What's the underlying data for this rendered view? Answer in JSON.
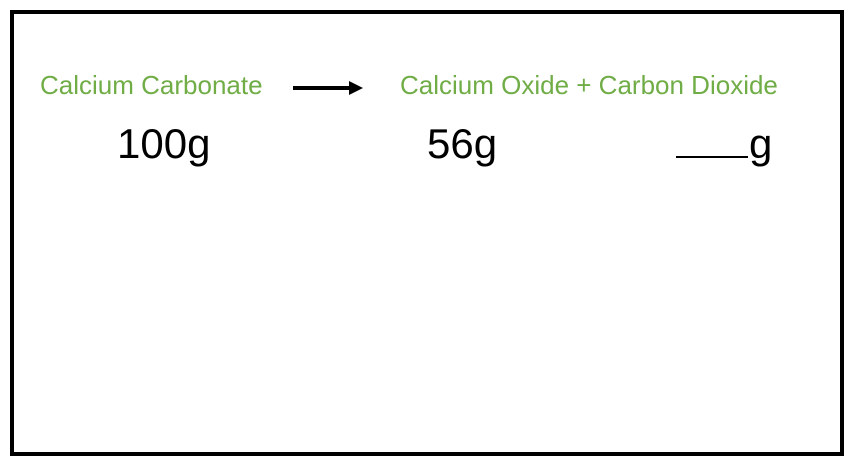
{
  "equation": {
    "reactant": "Calcium Carbonate",
    "products": "Calcium Oxide + Carbon Dioxide",
    "arrow_icon": "right-arrow-icon"
  },
  "masses": {
    "calcium_carbonate": "100g",
    "calcium_oxide": "56g",
    "carbon_dioxide_unit": "g"
  },
  "colors": {
    "label_green": "#70ad47",
    "text": "#000000",
    "border": "#000000"
  }
}
